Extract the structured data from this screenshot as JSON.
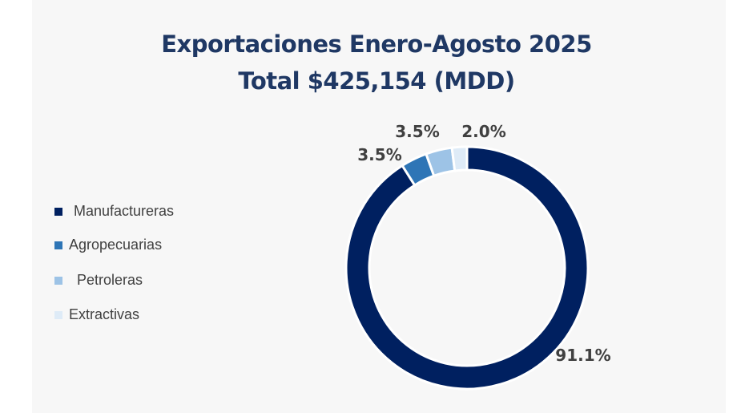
{
  "chart_data": {
    "type": "pie",
    "subtype": "donut",
    "title": "Exportaciones Enero-Agosto 2025",
    "subtitle": "Total $425,154 (MDD)",
    "categories": [
      "Manufactureras",
      "Agropecuarias",
      "Petroleras",
      "Extractivas"
    ],
    "values": [
      91.1,
      3.5,
      3.5,
      2.0
    ],
    "labels": [
      "91.1%",
      "3.5%",
      "3.5%",
      "2.0%"
    ],
    "colors": [
      "#002060",
      "#2e75b6",
      "#9dc3e6",
      "#deebf7"
    ],
    "legend_position": "left"
  }
}
